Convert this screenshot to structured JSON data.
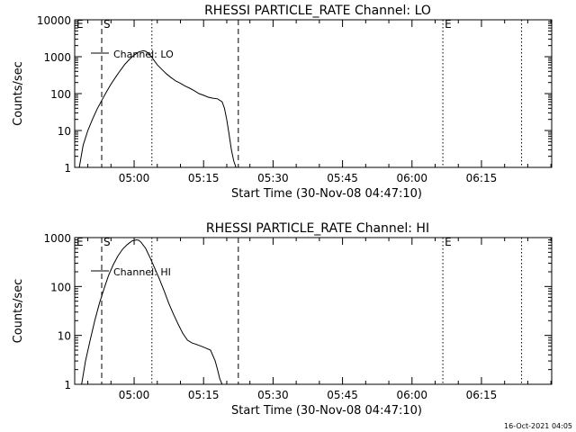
{
  "footer": {
    "timestamp": "16-Oct-2021 04:05"
  },
  "chart_data": [
    {
      "type": "line",
      "title": "RHESSI PARTICLE_RATE Channel: LO",
      "xlabel": "Start Time (30-Nov-08 04:47:10)",
      "ylabel": "Counts/sec",
      "xlim": [
        "04:47:10",
        "06:30:10"
      ],
      "ylim": [
        1,
        10000
      ],
      "yscale": "log",
      "x_ticks": [
        "05:00",
        "05:15",
        "05:30",
        "05:45",
        "06:00",
        "06:15"
      ],
      "y_ticks": [
        "1",
        "10",
        "100",
        "1000",
        "10000"
      ],
      "legend": {
        "placement": "top-left",
        "entries": [
          "Channel: LO"
        ]
      },
      "markers": [
        {
          "label": "E",
          "time": "04:47:10",
          "style": "none"
        },
        {
          "label": "S",
          "time": "04:53:00",
          "style": "dashed"
        },
        {
          "label": "",
          "time": "05:03:50",
          "style": "dotted"
        },
        {
          "label": "",
          "time": "05:22:30",
          "style": "dashed"
        },
        {
          "label": "E",
          "time": "06:06:40",
          "style": "dotted"
        },
        {
          "label": "",
          "time": "06:23:40",
          "style": "dotted"
        }
      ],
      "series": [
        {
          "name": "Channel: LO",
          "x": [
            "04:48:10",
            "04:49:00",
            "04:50:00",
            "04:51:00",
            "04:52:00",
            "04:53:00",
            "04:54:00",
            "04:55:00",
            "04:56:00",
            "04:57:00",
            "04:58:00",
            "04:59:00",
            "05:00:00",
            "05:01:00",
            "05:02:00",
            "05:02:30",
            "05:03:00",
            "05:04:00",
            "05:05:00",
            "05:06:00",
            "05:07:00",
            "05:08:00",
            "05:09:00",
            "05:10:00",
            "05:11:00",
            "05:12:00",
            "05:13:00",
            "05:14:00",
            "05:15:00",
            "05:16:00",
            "05:17:00",
            "05:18:00",
            "05:19:00",
            "05:19:30",
            "05:20:00",
            "05:20:30",
            "05:21:00",
            "05:21:30",
            "05:22:00"
          ],
          "y": [
            1,
            4,
            10,
            20,
            38,
            65,
            110,
            180,
            280,
            420,
            620,
            850,
            1100,
            1350,
            1450,
            1400,
            1250,
            900,
            600,
            450,
            340,
            270,
            220,
            190,
            160,
            140,
            120,
            100,
            90,
            80,
            75,
            72,
            60,
            40,
            20,
            8,
            3,
            1.5,
            1
          ]
        }
      ]
    },
    {
      "type": "line",
      "title": "RHESSI PARTICLE_RATE Channel: HI",
      "xlabel": "Start Time (30-Nov-08 04:47:10)",
      "ylabel": "Counts/sec",
      "xlim": [
        "04:47:10",
        "06:30:10"
      ],
      "ylim": [
        1,
        1000
      ],
      "yscale": "log",
      "x_ticks": [
        "05:00",
        "05:15",
        "05:30",
        "05:45",
        "06:00",
        "06:15"
      ],
      "y_ticks": [
        "1",
        "10",
        "100",
        "1000"
      ],
      "legend": {
        "placement": "top-left",
        "entries": [
          "Channel: HI"
        ]
      },
      "markers": [
        {
          "label": "E",
          "time": "04:47:10",
          "style": "none"
        },
        {
          "label": "S",
          "time": "04:53:00",
          "style": "dashed"
        },
        {
          "label": "",
          "time": "05:03:50",
          "style": "dotted"
        },
        {
          "label": "",
          "time": "05:22:30",
          "style": "dashed"
        },
        {
          "label": "E",
          "time": "06:06:40",
          "style": "dotted"
        },
        {
          "label": "",
          "time": "06:23:40",
          "style": "dotted"
        }
      ],
      "series": [
        {
          "name": "Channel: HI",
          "x": [
            "04:48:40",
            "04:49:30",
            "04:50:30",
            "04:51:30",
            "04:52:30",
            "04:53:30",
            "04:54:30",
            "04:55:30",
            "04:56:30",
            "04:57:30",
            "04:58:30",
            "04:59:30",
            "05:00:30",
            "05:01:00",
            "05:01:30",
            "05:02:30",
            "05:03:30",
            "05:04:30",
            "05:05:30",
            "05:06:30",
            "05:07:30",
            "05:08:30",
            "05:09:30",
            "05:10:30",
            "05:11:30",
            "05:12:30",
            "05:13:30",
            "05:14:30",
            "05:15:30",
            "05:16:30",
            "05:17:30",
            "05:18:00",
            "05:18:30",
            "05:19:00"
          ],
          "y": [
            1,
            3,
            8,
            20,
            45,
            90,
            170,
            280,
            420,
            580,
            720,
            850,
            900,
            880,
            800,
            600,
            380,
            230,
            140,
            80,
            45,
            27,
            17,
            11,
            8,
            7,
            6.5,
            6,
            5.5,
            5,
            3,
            2,
            1.3,
            1
          ]
        }
      ]
    }
  ]
}
